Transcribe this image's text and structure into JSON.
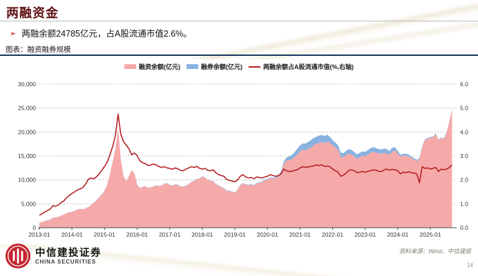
{
  "slide": {
    "title": "两融资金",
    "bullet_marker": "➢",
    "bullet": "两融余额24785亿元，占A股流通市值2.6%。",
    "figure_caption": "图表：融资融券规模",
    "source": "资料来源：Wind，中信建投",
    "page_number": "14",
    "logo_cn": "中信建投证券",
    "logo_en": "CHINA SECURITIES"
  },
  "colors": {
    "title_maroon": "#5d1113",
    "accent_red": "#c00000",
    "pink_area": "#f6a9a9",
    "blue_area": "#89b2e0",
    "line_red": "#b52025",
    "caption_rule_blue": "#17375e",
    "grid_gray": "#9a9a9a",
    "logo_red": "#c3242d"
  },
  "chart_data": {
    "type": "area",
    "title": "融资融券规模",
    "legend": [
      "融资余额(亿元)",
      "融券余额(亿元)",
      "两融余额占A股流通市值(%,右轴)"
    ],
    "stacking": "融券余额 stacked on top of 融资余额; ratio line on right axis",
    "x_monthly_start": "2013-01",
    "x_monthly_end": "2025-09",
    "x_tick_labels": [
      "2013-01",
      "2014-01",
      "2015-01",
      "2016-01",
      "2017-01",
      "2018-01",
      "2019-01",
      "2020-01",
      "2021-01",
      "2022-01",
      "2023-01",
      "2024-01",
      "2025-01"
    ],
    "ylim_left": [
      0,
      30000
    ],
    "y_left_ticks": [
      "0",
      "5,000",
      "10,000",
      "15,000",
      "20,000",
      "25,000",
      "30,000"
    ],
    "ylim_right": [
      0,
      6
    ],
    "y_right_ticks": [
      "0.0",
      "1.0",
      "2.0",
      "3.0",
      "4.0",
      "5.0",
      "6.0"
    ],
    "grid": "horizontal dotted",
    "legend_position": "top center",
    "series": [
      {
        "name": "融资余额(亿元)",
        "axis": "left",
        "type": "area",
        "color": "#f6a9a9",
        "values": [
          1000,
          1200,
          1400,
          1550,
          1700,
          2100,
          2150,
          2250,
          2500,
          2750,
          3000,
          3200,
          3300,
          3500,
          3800,
          3900,
          3850,
          4000,
          4300,
          4650,
          5150,
          5700,
          6300,
          6900,
          7700,
          9000,
          11200,
          13800,
          16500,
          20700,
          14300,
          10800,
          9700,
          10800,
          12000,
          11400,
          9000,
          8300,
          8550,
          8700,
          8300,
          8450,
          8600,
          8850,
          8700,
          8800,
          9200,
          9300,
          8950,
          8750,
          9050,
          8950,
          8600,
          8550,
          8750,
          9100,
          9500,
          9800,
          10150,
          10250,
          10700,
          10450,
          10000,
          9800,
          9700,
          9100,
          8800,
          8500,
          8200,
          7700,
          7650,
          7500,
          7300,
          7900,
          8900,
          9250,
          9000,
          8900,
          9050,
          8800,
          9250,
          9400,
          9500,
          9900,
          10050,
          10400,
          10200,
          10350,
          10600,
          11350,
          13250,
          14050,
          14100,
          14300,
          14800,
          15200,
          16000,
          16300,
          16200,
          16450,
          16800,
          17200,
          17500,
          17700,
          17900,
          17700,
          17950,
          17800,
          17200,
          16800,
          16300,
          14800,
          14700,
          15200,
          15500,
          15300,
          14900,
          14400,
          14700,
          15000,
          14900,
          15300,
          15650,
          15900,
          15700,
          15550,
          15450,
          15650,
          15500,
          15200,
          15950,
          16100,
          15500,
          14800,
          15100,
          15050,
          14900,
          14600,
          14250,
          13900,
          14350,
          16800,
          18300,
          18600,
          18800,
          18950,
          19600,
          18300,
          18700,
          18600,
          19800,
          22200,
          24650
        ]
      },
      {
        "name": "融券余额(亿元)",
        "axis": "left",
        "type": "area-stacked",
        "color": "#89b2e0",
        "values": [
          30,
          30,
          30,
          30,
          30,
          30,
          30,
          30,
          30,
          30,
          30,
          30,
          30,
          35,
          40,
          40,
          40,
          40,
          45,
          50,
          60,
          70,
          70,
          70,
          70,
          70,
          80,
          90,
          90,
          90,
          40,
          30,
          25,
          25,
          30,
          30,
          30,
          30,
          30,
          30,
          30,
          30,
          35,
          35,
          35,
          35,
          40,
          40,
          40,
          40,
          40,
          45,
          45,
          45,
          45,
          50,
          50,
          55,
          55,
          55,
          55,
          55,
          60,
          60,
          60,
          60,
          65,
          70,
          75,
          80,
          80,
          80,
          80,
          85,
          90,
          95,
          95,
          90,
          95,
          100,
          110,
          120,
          130,
          140,
          140,
          170,
          200,
          250,
          320,
          400,
          500,
          650,
          800,
          900,
          1000,
          1300,
          1200,
          1300,
          1400,
          1450,
          1500,
          1550,
          1500,
          1550,
          1500,
          1450,
          1500,
          1200,
          1100,
          1000,
          950,
          920,
          880,
          900,
          950,
          950,
          920,
          900,
          950,
          960,
          950,
          950,
          950,
          930,
          920,
          900,
          900,
          920,
          900,
          850,
          800,
          700,
          550,
          430,
          390,
          400,
          380,
          330,
          300,
          280,
          250,
          200,
          180,
          160,
          150,
          140,
          140,
          135,
          130,
          130,
          130,
          135,
          135
        ]
      },
      {
        "name": "两融余额占A股流通市值(%,右轴)",
        "axis": "right",
        "type": "line",
        "color": "#b52025",
        "values": [
          0.52,
          0.58,
          0.65,
          0.72,
          0.78,
          0.92,
          0.9,
          0.95,
          1.05,
          1.12,
          1.25,
          1.35,
          1.43,
          1.5,
          1.58,
          1.62,
          1.68,
          1.82,
          2.02,
          2.08,
          2.05,
          2.12,
          2.25,
          2.4,
          2.56,
          2.75,
          3.05,
          3.4,
          3.85,
          4.75,
          3.9,
          3.6,
          3.45,
          3.3,
          3.05,
          3.12,
          3.02,
          2.8,
          2.72,
          2.68,
          2.6,
          2.62,
          2.66,
          2.62,
          2.56,
          2.52,
          2.55,
          2.5,
          2.48,
          2.44,
          2.5,
          2.46,
          2.4,
          2.38,
          2.45,
          2.5,
          2.55,
          2.52,
          2.56,
          2.48,
          2.45,
          2.48,
          2.4,
          2.38,
          2.42,
          2.3,
          2.22,
          2.18,
          2.15,
          2.02,
          1.98,
          1.95,
          1.92,
          2.0,
          2.15,
          2.22,
          2.12,
          2.08,
          2.1,
          2.05,
          2.12,
          2.1,
          2.08,
          2.12,
          2.15,
          2.22,
          2.18,
          2.15,
          2.18,
          2.25,
          2.45,
          2.38,
          2.35,
          2.36,
          2.4,
          2.42,
          2.5,
          2.55,
          2.52,
          2.54,
          2.56,
          2.58,
          2.62,
          2.6,
          2.63,
          2.56,
          2.58,
          2.55,
          2.45,
          2.38,
          2.32,
          2.15,
          2.2,
          2.28,
          2.4,
          2.42,
          2.38,
          2.3,
          2.32,
          2.35,
          2.32,
          2.36,
          2.38,
          2.42,
          2.4,
          2.36,
          2.34,
          2.42,
          2.45,
          2.4,
          2.44,
          2.42,
          2.38,
          2.25,
          2.32,
          2.3,
          2.34,
          2.3,
          2.28,
          2.25,
          1.88,
          2.55,
          2.48,
          2.5,
          2.45,
          2.48,
          2.52,
          2.35,
          2.45,
          2.42,
          2.45,
          2.52,
          2.62
        ]
      }
    ]
  }
}
